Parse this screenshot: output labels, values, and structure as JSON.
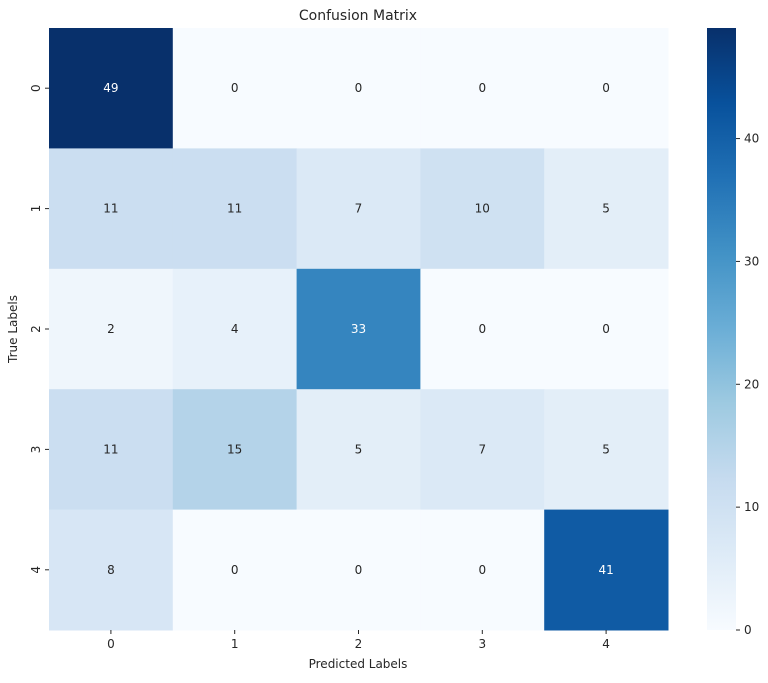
{
  "chart_data": {
    "type": "heatmap",
    "title": "Confusion Matrix",
    "xlabel": "Predicted Labels",
    "ylabel": "True Labels",
    "x_tick_labels": [
      "0",
      "1",
      "2",
      "3",
      "4"
    ],
    "y_tick_labels": [
      "0",
      "1",
      "2",
      "3",
      "4"
    ],
    "values": [
      [
        49,
        0,
        0,
        0,
        0
      ],
      [
        11,
        11,
        7,
        10,
        5
      ],
      [
        2,
        4,
        33,
        0,
        0
      ],
      [
        11,
        15,
        5,
        7,
        5
      ],
      [
        8,
        0,
        0,
        0,
        41
      ]
    ],
    "colormap": "Blues",
    "colormap_stops": [
      "#f7fbff",
      "#deebf7",
      "#c6dbef",
      "#9ecae1",
      "#6baed6",
      "#4292c6",
      "#2171b5",
      "#08519c",
      "#08306b"
    ],
    "vmin": 0,
    "vmax": 49,
    "colorbar_ticks": [
      0,
      10,
      20,
      30,
      40
    ],
    "annotations": true,
    "grid": false
  }
}
